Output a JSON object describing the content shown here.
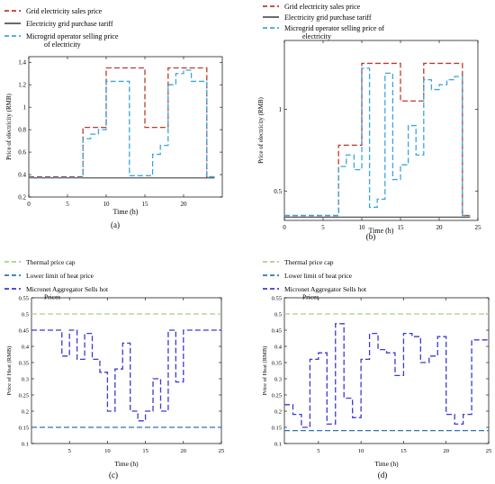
{
  "chart_data": [
    {
      "type": "line",
      "panel_label": "(a)",
      "xlabel": "Time (h)",
      "ylabel": "Price of electricity (RMB)",
      "xlim": [
        0,
        25
      ],
      "ylim": [
        0.2,
        1.45
      ],
      "xticks": [
        0,
        5,
        10,
        15,
        20
      ],
      "yticks": [
        0.2,
        0.4,
        0.6,
        0.8,
        1,
        1.2,
        1.4
      ],
      "grid": false,
      "legend_position": "top-left, above plot",
      "series": [
        {
          "name": "Grid electricity sales price",
          "color": "#c0392b",
          "dash": "dash",
          "step": true,
          "x": [
            0,
            7,
            10,
            15,
            18,
            23,
            24
          ],
          "y": [
            0.38,
            0.82,
            1.35,
            0.82,
            1.35,
            0.38,
            0.38
          ]
        },
        {
          "name": "Electricity grid purchase tariff",
          "color": "#555555",
          "dash": "solid",
          "step": true,
          "x": [
            0,
            24
          ],
          "y": [
            0.37,
            0.37
          ]
        },
        {
          "name": "Microgrid operator selling price of electricity",
          "color": "#3aa6dd",
          "dash": "dash",
          "step": true,
          "x": [
            0,
            7,
            8,
            9,
            10,
            13,
            15,
            16,
            17,
            18,
            19,
            20,
            21,
            22,
            23,
            24
          ],
          "y": [
            0.37,
            0.72,
            0.76,
            0.8,
            1.23,
            0.39,
            0.39,
            0.58,
            0.66,
            1.2,
            1.3,
            1.33,
            1.23,
            1.23,
            0.38,
            0.38
          ]
        }
      ]
    },
    {
      "type": "line",
      "panel_label": "(b)",
      "xlabel": "Time (h)",
      "ylabel": "Price of electricity (RMB)",
      "xlim": [
        0,
        25
      ],
      "ylim": [
        0.32,
        1.42
      ],
      "xticks": [
        0,
        5,
        10,
        15,
        20,
        25
      ],
      "yticks": [
        0.5,
        1
      ],
      "grid": false,
      "legend_position": "top-left, above plot",
      "series": [
        {
          "name": "Grid electricity sales price",
          "color": "#c0392b",
          "dash": "dash",
          "step": true,
          "x": [
            0,
            7,
            10,
            15,
            18,
            23,
            24
          ],
          "y": [
            0.35,
            0.78,
            1.28,
            1.05,
            1.28,
            0.35,
            0.35
          ]
        },
        {
          "name": "Electricity grid purchase tariff",
          "color": "#555555",
          "dash": "solid",
          "step": true,
          "x": [
            0,
            24
          ],
          "y": [
            0.34,
            0.34
          ]
        },
        {
          "name": "Microgrid operator selling price of electricity",
          "color": "#3aa6dd",
          "dash": "dash",
          "step": true,
          "x": [
            0,
            7,
            8,
            9,
            10,
            11,
            12,
            13,
            14,
            15,
            16,
            17,
            18,
            19,
            20,
            21,
            22,
            23,
            24
          ],
          "y": [
            0.35,
            0.65,
            0.72,
            0.63,
            1.25,
            0.4,
            0.45,
            1.22,
            0.57,
            0.66,
            0.9,
            0.72,
            1.18,
            1.12,
            1.15,
            1.18,
            1.2,
            0.35,
            0.35
          ]
        }
      ]
    },
    {
      "type": "line",
      "panel_label": "(c)",
      "xlabel": "Time (h)",
      "ylabel": "Price of Heat (RMB)",
      "xlim": [
        0,
        25
      ],
      "ylim": [
        0.1,
        0.55
      ],
      "xticks": [
        5,
        10,
        15,
        20,
        25
      ],
      "yticks": [
        0.1,
        0.15,
        0.2,
        0.25,
        0.3,
        0.35,
        0.4,
        0.45,
        0.5,
        0.55
      ],
      "grid": false,
      "legend_position": "top-left, above plot",
      "series": [
        {
          "name": "Thermal price cap",
          "color": "#a8d08d",
          "dash": "dash",
          "step": true,
          "x": [
            0,
            25
          ],
          "y": [
            0.5,
            0.5
          ]
        },
        {
          "name": "Lower limit of heat price",
          "color": "#2f75b5",
          "dash": "dash",
          "step": true,
          "x": [
            0,
            25
          ],
          "y": [
            0.15,
            0.15
          ]
        },
        {
          "name": "Micronet Aggregator Sells hot Prices",
          "color": "#3a3ad6",
          "dash": "dash",
          "step": true,
          "x": [
            0,
            4,
            5,
            6,
            7,
            8,
            9,
            10,
            11,
            12,
            13,
            14,
            15,
            16,
            17,
            18,
            19,
            20,
            25
          ],
          "y": [
            0.45,
            0.37,
            0.45,
            0.36,
            0.44,
            0.36,
            0.32,
            0.2,
            0.33,
            0.41,
            0.2,
            0.17,
            0.2,
            0.3,
            0.2,
            0.45,
            0.29,
            0.45,
            0.45
          ]
        }
      ]
    },
    {
      "type": "line",
      "panel_label": "(d)",
      "xlabel": "Time (h)",
      "ylabel": "Price of Heat (RMB)",
      "xlim": [
        1,
        25
      ],
      "ylim": [
        0.1,
        0.55
      ],
      "xticks": [
        5,
        10,
        15,
        20,
        25
      ],
      "yticks": [
        0.1,
        0.15,
        0.2,
        0.25,
        0.3,
        0.35,
        0.4,
        0.45,
        0.5,
        0.55
      ],
      "grid": false,
      "legend_position": "top-left, above plot",
      "series": [
        {
          "name": "Thermal price cap",
          "color": "#a8d08d",
          "dash": "dash",
          "step": true,
          "x": [
            1,
            25
          ],
          "y": [
            0.5,
            0.5
          ]
        },
        {
          "name": "Lower limit of heat price",
          "color": "#2f75b5",
          "dash": "dash",
          "step": true,
          "x": [
            1,
            25
          ],
          "y": [
            0.14,
            0.14
          ]
        },
        {
          "name": "Micronet Aggregator Sells hot Prices",
          "color": "#3a3ad6",
          "dash": "dash",
          "step": true,
          "x": [
            1,
            2,
            3,
            4,
            5,
            6,
            7,
            8,
            9,
            10,
            11,
            12,
            13,
            14,
            15,
            16,
            17,
            18,
            19,
            20,
            21,
            22,
            23,
            24,
            25
          ],
          "y": [
            0.22,
            0.19,
            0.15,
            0.36,
            0.38,
            0.16,
            0.47,
            0.24,
            0.18,
            0.36,
            0.44,
            0.39,
            0.38,
            0.31,
            0.44,
            0.43,
            0.35,
            0.37,
            0.43,
            0.19,
            0.16,
            0.19,
            0.42,
            0.42,
            0.42
          ]
        }
      ]
    }
  ]
}
